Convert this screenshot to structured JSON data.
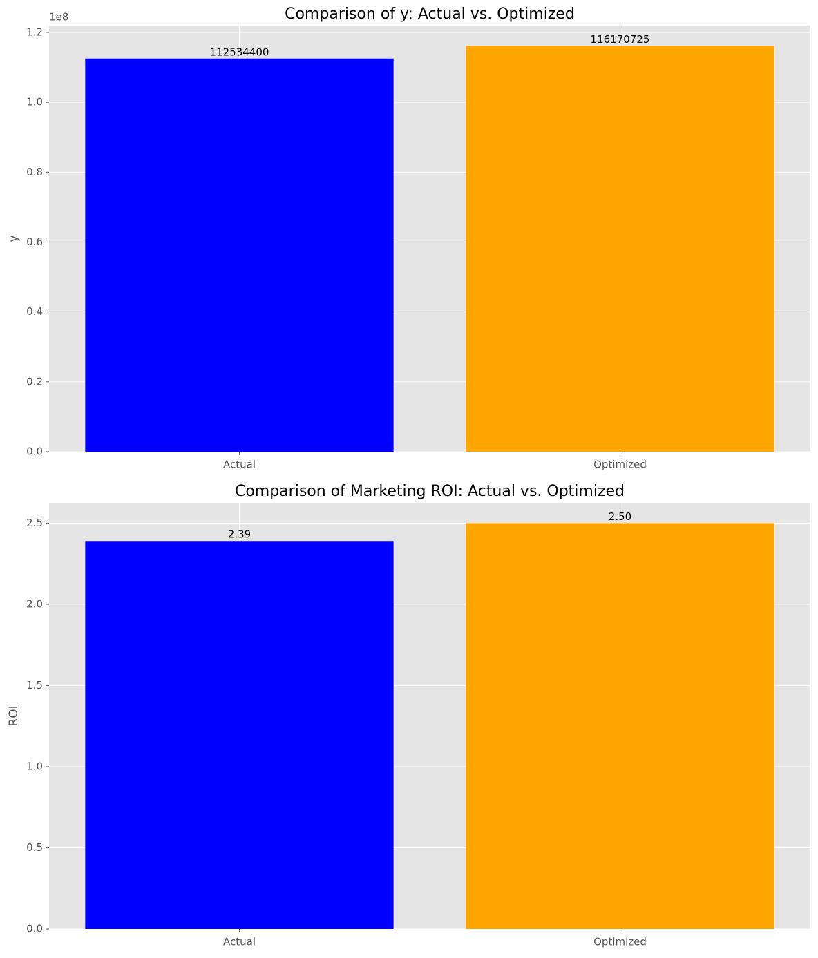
{
  "chart_data": [
    {
      "type": "bar",
      "title": "Comparison of y: Actual vs. Optimized",
      "y_label": "y",
      "y_offset_label": "1e8",
      "categories": [
        "Actual",
        "Optimized"
      ],
      "values": [
        112534400,
        116170725
      ],
      "colors": [
        "#0000ff",
        "#ffa500"
      ],
      "ylim": [
        0,
        121979261
      ],
      "yticks": [
        {
          "value": 0,
          "label": "0.0"
        },
        {
          "value": 20000000,
          "label": "0.2"
        },
        {
          "value": 40000000,
          "label": "0.4"
        },
        {
          "value": 60000000,
          "label": "0.6"
        },
        {
          "value": 80000000,
          "label": "0.8"
        },
        {
          "value": 100000000,
          "label": "1.0"
        },
        {
          "value": 120000000,
          "label": "1.2"
        }
      ],
      "grid": true
    },
    {
      "type": "bar",
      "title": "Comparison of Marketing ROI: Actual vs. Optimized",
      "y_label": "ROI",
      "categories": [
        "Actual",
        "Optimized"
      ],
      "values": [
        2.39,
        2.5
      ],
      "value_labels": [
        "2.39",
        "2.50"
      ],
      "colors": [
        "#0000ff",
        "#ffa500"
      ],
      "ylim": [
        0,
        2.625
      ],
      "yticks": [
        {
          "value": 0,
          "label": "0.0"
        },
        0.5,
        {
          "value": 1,
          "label": "1.0"
        },
        1.5,
        {
          "value": 2,
          "label": "2.0"
        },
        2.5
      ],
      "grid": true
    }
  ]
}
